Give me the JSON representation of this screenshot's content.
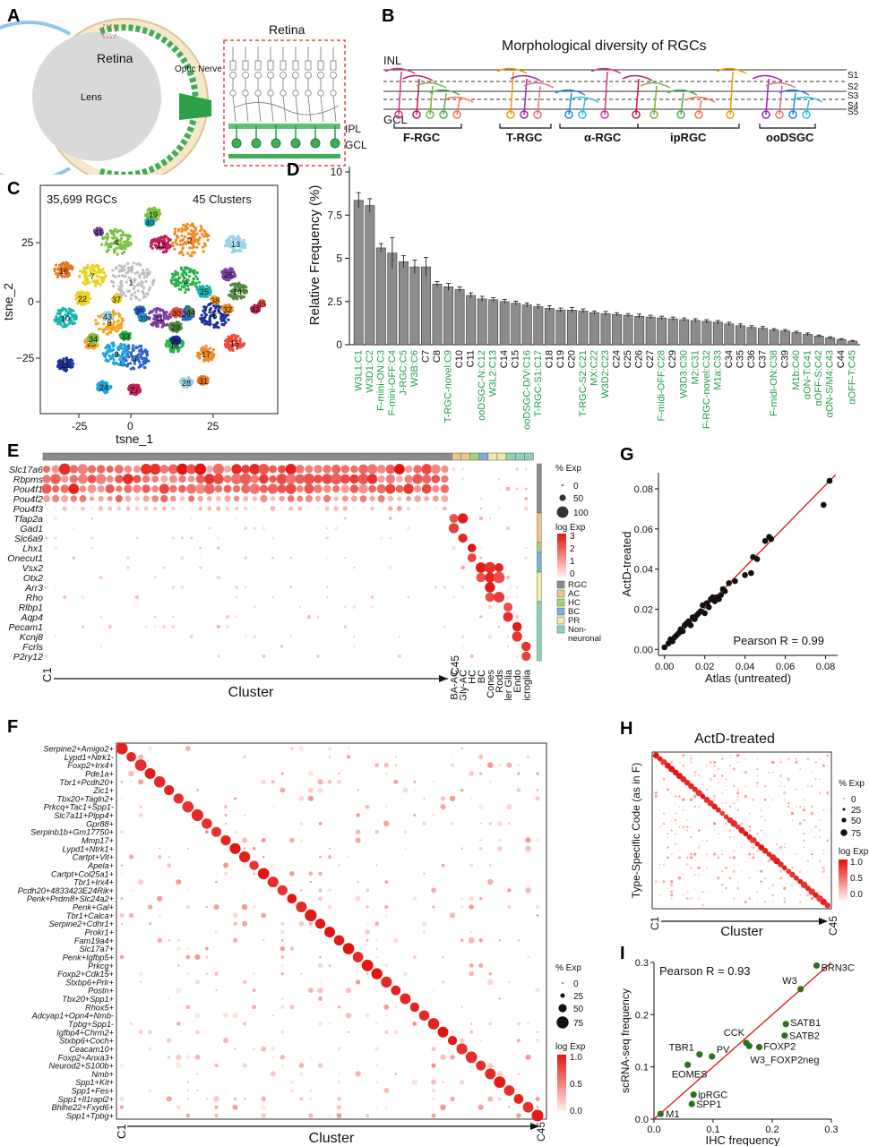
{
  "panels": {
    "A": {
      "letter": "A",
      "retina": "Retina",
      "lens": "Lens",
      "optic_nerve": "Optic Nerve",
      "zoom_title": "Retina",
      "ipl": "IPL",
      "gcl": "GCL"
    },
    "B": {
      "letter": "B",
      "title": "Morphological diversity of RGCs",
      "inl": "INL",
      "gcl": "GCL",
      "strata": [
        "S1",
        "S2",
        "S3",
        "S4",
        "S5"
      ],
      "groups": [
        "F-RGC",
        "T-RGC",
        "α-RGC",
        "ipRGC",
        "ooDSGC"
      ]
    },
    "C": {
      "letter": "C",
      "count": "35,699 RGCs",
      "clusters": "45 Clusters",
      "xlabel": "tsne_1",
      "ylabel": "tsne_2",
      "xticks": [
        "-25",
        "0",
        "25"
      ],
      "yticks": [
        "25",
        "0",
        "−25"
      ],
      "cluster_labels": [
        "1",
        "2",
        "3",
        "4",
        "5",
        "6",
        "7",
        "8",
        "9",
        "10",
        "11",
        "12",
        "13",
        "14",
        "15",
        "16",
        "17",
        "18",
        "19",
        "20",
        "21",
        "22",
        "23",
        "24",
        "25",
        "26",
        "27",
        "28",
        "29",
        "30",
        "31",
        "32",
        "33",
        "34",
        "35",
        "36",
        "37",
        "38",
        "39",
        "40",
        "41",
        "42",
        "43",
        "44",
        "45"
      ]
    },
    "D": {
      "letter": "D"
    },
    "E": {
      "letter": "E",
      "genes": [
        "Slc17a6",
        "Rbpms",
        "Pou4f1",
        "Pou4f2",
        "Pou4f3",
        "Tfap2a",
        "Gad1",
        "Slc6a9",
        "Lhx1",
        "Onecut1",
        "Vsx2",
        "Otx2",
        "Arr3",
        "Rho",
        "Rlbp1",
        "Aqp4",
        "Pecam1",
        "Kcnj8",
        "Fcrls",
        "P2ry12"
      ],
      "x_start": "C1",
      "x_end": "C45",
      "xlabel": "Cluster",
      "class_labels": [
        "GABA-AC",
        "Gly-AC",
        "HC",
        "BC",
        "Cones",
        "Rods",
        "Muller Glia",
        "Endo",
        "Microglia"
      ],
      "legend_pct_title": "% Exp",
      "legend_pct": [
        "0",
        "50",
        "100"
      ],
      "legend_log_title": "log Exp",
      "legend_log": [
        "3",
        "2",
        "1",
        "0"
      ],
      "classes": [
        "RGC",
        "AC",
        "HC",
        "BC",
        "PR",
        "Non-\nneuronal"
      ],
      "class_colors": [
        "#8c8c8c",
        "#f0c58a",
        "#a9cf7a",
        "#7fb0d8",
        "#f2e8a8",
        "#8fd1b8"
      ]
    },
    "F": {
      "letter": "F",
      "codes": [
        "Serpine2+Amigo2+",
        "Lypd1+Ntrk1-",
        "Foxp2+Irx4+",
        "Pde1a+",
        "Tbr1+Pcdh20+",
        "Zic1+",
        "Tbx20+Tagln2+",
        "Prkcq+Tac1+Spp1-",
        "Slc7a11+Plpp4+",
        "Gpr88+",
        "Serpinb1b+Gm17750+",
        "Mmp17+",
        "Lypd1+Ntrk1+",
        "Cartpt+Vit+",
        "Apela+",
        "Cartpt+Col25a1+",
        "Tbr1+Irx4+",
        "Pcdh20+4833423E24Rik+",
        "Penk+Prdm8+Slc24a2+",
        "Penk+Gal+",
        "Tbr1+Calca+",
        "Serpine2+Cdhr1+",
        "Prokr1+",
        "Fam19a4+",
        "Slc17a7+",
        "Penk+Igfbp5+",
        "Prkcg+",
        "Foxp2+Cdk15+",
        "Stxbp6+Prlr+",
        "Postn+",
        "Tbx20+Spp1+",
        "Rhox5+",
        "Adcyap1+Opn4+Nmb-",
        "Tpbg+Spp1-",
        "Igfbp4+Chrm2+",
        "Stxbp6+Coch+",
        "Ceacam10+",
        "Foxp2+Anxa3+",
        "Neurod2+S100b+",
        "Nmb+",
        "Spp1+Kit+",
        "Spp1+Fes+",
        "Spp1+Il1rapl2+",
        "Bhlhe22+Fxyd6+",
        "Spp1+Tpbg+"
      ],
      "x_start": "C1",
      "x_end": "C45",
      "xlabel": "Cluster",
      "legend_pct_title": "% Exp",
      "legend_pct": [
        "0",
        "25",
        "50",
        "75"
      ],
      "legend_log_title": "log Exp",
      "legend_log": [
        "1.0",
        "0.5",
        "0.0"
      ]
    },
    "G": {
      "letter": "G",
      "annotation": "Pearson R = 0.99",
      "xlabel": "Atlas (untreated)",
      "ylabel": "ActD-treated",
      "xticks": [
        "0.00",
        "0.02",
        "0.04",
        "0.06",
        "0.08"
      ],
      "yticks": [
        "0.00",
        "0.02",
        "0.04",
        "0.06",
        "0.08"
      ]
    },
    "H": {
      "letter": "H",
      "title": "ActD-treated",
      "ylabel": "Type-Specific Code (as in F)",
      "xlabel": "Cluster",
      "x_start": "C1",
      "x_end": "C45",
      "legend_pct_title": "% Exp",
      "legend_pct": [
        "0",
        "25",
        "50",
        "75"
      ],
      "legend_log_title": "log Exp",
      "legend_log": [
        "1.0",
        "0.5",
        "0.0"
      ]
    },
    "I": {
      "letter": "I"
    }
  },
  "chart_data": [
    {
      "panel": "D",
      "type": "bar",
      "ylabel": "Relative Frequency (%)",
      "ylim": [
        0,
        10
      ],
      "yticks": [
        0,
        2.5,
        5,
        7.5,
        10
      ],
      "categories": [
        "W3L1:C1",
        "W3D1:C2",
        "F-mini-ON:C3",
        "F-mini-OFF:C4",
        "J-RGC:C5",
        "W3B:C6",
        "C7",
        "C8",
        "T-RGC-novel:C9",
        "C10",
        "C11",
        "ooDSGC-N:C12",
        "W3L2:C13",
        "C14",
        "C15",
        "ooDSGC-D/V:C16",
        "T-RGC-S1:C17",
        "C18",
        "C19",
        "C20",
        "T-RGC-S2:C21",
        "MX:C22",
        "W3D2:C23",
        "C24",
        "C25",
        "C26",
        "C27",
        "F-midi-OFF:C28",
        "C29",
        "W3D3:C30",
        "M2:C31",
        "F-RGC-novel:C32",
        "M1a:C33",
        "C34",
        "C35",
        "C36",
        "C37",
        "F-midi-ON:C38",
        "C39",
        "M1b:C40",
        "αON-T:C41",
        "αOFF-S:C42",
        "αON-S/M4:C43",
        "C44",
        "αOFF-T:C45"
      ],
      "green_labels": [
        "W3L1:C1",
        "W3D1:C2",
        "F-mini-ON:C3",
        "F-mini-OFF:C4",
        "J-RGC:C5",
        "W3B:C6",
        "T-RGC-novel:C9",
        "ooDSGC-N:C12",
        "W3L2:C13",
        "ooDSGC-D/V:C16",
        "T-RGC-S1:C17",
        "T-RGC-S2:C21",
        "MX:C22",
        "W3D2:C23",
        "F-midi-OFF:C28",
        "W3D3:C30",
        "M2:C31",
        "F-RGC-novel:C32",
        "M1a:C33",
        "F-midi-ON:C38",
        "M1b:C40",
        "αON-T:C41",
        "αOFF-S:C42",
        "αON-S/M4:C43",
        "αOFF-T:C45"
      ],
      "values": [
        8.35,
        8.05,
        5.6,
        5.3,
        4.8,
        4.5,
        4.5,
        3.5,
        3.35,
        3.2,
        2.85,
        2.65,
        2.6,
        2.5,
        2.4,
        2.3,
        2.2,
        2.1,
        2.0,
        2.0,
        1.95,
        1.85,
        1.8,
        1.75,
        1.7,
        1.65,
        1.6,
        1.55,
        1.5,
        1.45,
        1.4,
        1.35,
        1.3,
        1.2,
        1.1,
        1.0,
        0.95,
        0.85,
        0.8,
        0.7,
        0.6,
        0.5,
        0.4,
        0.3,
        0.2
      ],
      "errors": [
        0.45,
        0.4,
        0.25,
        0.9,
        0.35,
        0.4,
        0.55,
        0.15,
        0.2,
        0.15,
        0.15,
        0.15,
        0.12,
        0.12,
        0.12,
        0.12,
        0.12,
        0.15,
        0.12,
        0.15,
        0.12,
        0.1,
        0.12,
        0.1,
        0.1,
        0.12,
        0.1,
        0.1,
        0.1,
        0.1,
        0.1,
        0.1,
        0.1,
        0.1,
        0.1,
        0.1,
        0.1,
        0.08,
        0.08,
        0.08,
        0.08,
        0.06,
        0.06,
        0.05,
        0.05
      ]
    },
    {
      "panel": "G",
      "type": "scatter",
      "xlabel": "Atlas (untreated)",
      "ylabel": "ActD-treated",
      "xlim": [
        -0.003,
        0.086
      ],
      "ylim": [
        -0.003,
        0.088
      ],
      "points": [
        [
          0.0,
          0.001
        ],
        [
          0.002,
          0.003
        ],
        [
          0.003,
          0.005
        ],
        [
          0.004,
          0.004
        ],
        [
          0.005,
          0.006
        ],
        [
          0.006,
          0.007
        ],
        [
          0.007,
          0.008
        ],
        [
          0.008,
          0.01
        ],
        [
          0.009,
          0.009
        ],
        [
          0.01,
          0.012
        ],
        [
          0.011,
          0.013
        ],
        [
          0.012,
          0.014
        ],
        [
          0.013,
          0.012
        ],
        [
          0.014,
          0.016
        ],
        [
          0.015,
          0.015
        ],
        [
          0.016,
          0.017
        ],
        [
          0.017,
          0.018
        ],
        [
          0.018,
          0.019
        ],
        [
          0.019,
          0.022
        ],
        [
          0.02,
          0.018
        ],
        [
          0.021,
          0.023
        ],
        [
          0.022,
          0.021
        ],
        [
          0.023,
          0.025
        ],
        [
          0.024,
          0.026
        ],
        [
          0.025,
          0.024
        ],
        [
          0.026,
          0.026
        ],
        [
          0.027,
          0.025
        ],
        [
          0.028,
          0.027
        ],
        [
          0.029,
          0.03
        ],
        [
          0.03,
          0.029
        ],
        [
          0.032,
          0.033
        ],
        [
          0.035,
          0.034
        ],
        [
          0.04,
          0.037
        ],
        [
          0.043,
          0.038
        ],
        [
          0.044,
          0.046
        ],
        [
          0.046,
          0.045
        ],
        [
          0.05,
          0.054
        ],
        [
          0.052,
          0.056
        ],
        [
          0.053,
          0.055
        ],
        [
          0.079,
          0.072
        ],
        [
          0.082,
          0.084
        ]
      ],
      "fit": [
        [
          0.0,
          0.0
        ],
        [
          0.085,
          0.087
        ]
      ]
    },
    {
      "panel": "I",
      "type": "scatter",
      "title": "Pearson R = 0.93",
      "xlabel": "IHC frequency",
      "ylabel": "scRNA-seq frequency",
      "xlim": [
        0,
        0.3
      ],
      "ylim": [
        0,
        0.3
      ],
      "xticks": [
        "0.0",
        "0.1",
        "0.2",
        "0.3"
      ],
      "yticks": [
        "0.0",
        "0.1",
        "0.2",
        "0.3"
      ],
      "points": [
        {
          "label": "BRN3C",
          "x": 0.275,
          "y": 0.294
        },
        {
          "label": "W3",
          "x": 0.248,
          "y": 0.249
        },
        {
          "label": "SATB1",
          "x": 0.223,
          "y": 0.182
        },
        {
          "label": "SATB2",
          "x": 0.221,
          "y": 0.16
        },
        {
          "label": "CCK",
          "x": 0.156,
          "y": 0.146
        },
        {
          "label": "FOXP2",
          "x": 0.161,
          "y": 0.14
        },
        {
          "label": "W3_FOXP2neg",
          "x": 0.178,
          "y": 0.138
        },
        {
          "label": "PV",
          "x": 0.098,
          "y": 0.12
        },
        {
          "label": "TBR1",
          "x": 0.077,
          "y": 0.124
        },
        {
          "label": "EOMES",
          "x": 0.057,
          "y": 0.104
        },
        {
          "label": "ipRGC",
          "x": 0.067,
          "y": 0.047
        },
        {
          "label": "SPP1",
          "x": 0.064,
          "y": 0.029
        },
        {
          "label": "M1",
          "x": 0.011,
          "y": 0.01
        }
      ],
      "fit": [
        [
          0.0,
          -0.005
        ],
        [
          0.3,
          0.308
        ]
      ]
    }
  ]
}
